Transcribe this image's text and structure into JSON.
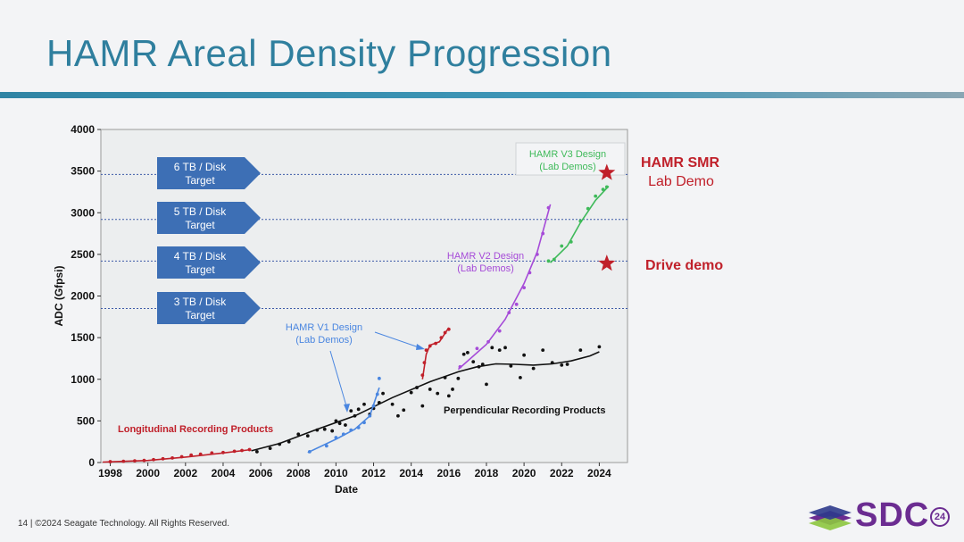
{
  "slide": {
    "title": "HAMR Areal Density Progression",
    "footer": "14 | ©2024 Seagate Technology. All Rights Reserved.",
    "logo_text": "SDC",
    "logo_year": "24"
  },
  "colors": {
    "title": "#2f7f9e",
    "target_box": "#3d6fb5",
    "longitudinal": "#c0202a",
    "perpendicular": "#111111",
    "v1": "#4a86e0",
    "v2": "#a64bd8",
    "v3": "#3fba5a",
    "star": "#c0202a"
  },
  "chart_data": {
    "type": "scatter",
    "xlabel": "Date",
    "ylabel": "ADC (Gfpsi)",
    "xlim": [
      1997.5,
      2025.5
    ],
    "ylim": [
      0,
      4000
    ],
    "xticks": [
      "1998",
      "2000",
      "2002",
      "2004",
      "2006",
      "2008",
      "2010",
      "2012",
      "2014",
      "2016",
      "2018",
      "2020",
      "2022",
      "2024"
    ],
    "yticks": [
      "0",
      "500",
      "1000",
      "1500",
      "2000",
      "2500",
      "3000",
      "3500",
      "4000"
    ],
    "targets": [
      {
        "label_line1": "6 TB / Disk",
        "label_line2": "Target",
        "y": 3460
      },
      {
        "label_line1": "5 TB / Disk",
        "label_line2": "Target",
        "y": 2920
      },
      {
        "label_line1": "4 TB / Disk",
        "label_line2": "Target",
        "y": 2420
      },
      {
        "label_line1": "3 TB / Disk",
        "label_line2": "Target",
        "y": 1850
      }
    ],
    "series": [
      {
        "name": "Longitudinal Recording Products",
        "key": "longitudinal",
        "points": [
          [
            1998,
            10
          ],
          [
            1998.7,
            15
          ],
          [
            1999.3,
            20
          ],
          [
            1999.8,
            25
          ],
          [
            2000.3,
            35
          ],
          [
            2000.8,
            45
          ],
          [
            2001.3,
            55
          ],
          [
            2001.8,
            70
          ],
          [
            2002.3,
            90
          ],
          [
            2002.8,
            100
          ],
          [
            2003.4,
            115
          ],
          [
            2004,
            120
          ],
          [
            2004.6,
            135
          ],
          [
            2005,
            145
          ],
          [
            2005.4,
            155
          ]
        ],
        "trend": [
          [
            1997.6,
            5
          ],
          [
            2000,
            25
          ],
          [
            2002,
            65
          ],
          [
            2004,
            115
          ],
          [
            2005.5,
            155
          ]
        ]
      },
      {
        "name": "Perpendicular Recording Products",
        "key": "perpendicular",
        "points": [
          [
            2005.8,
            130
          ],
          [
            2006.5,
            170
          ],
          [
            2007,
            220
          ],
          [
            2007.5,
            250
          ],
          [
            2008,
            340
          ],
          [
            2008.5,
            320
          ],
          [
            2009,
            390
          ],
          [
            2009.4,
            400
          ],
          [
            2009.8,
            380
          ],
          [
            2010,
            500
          ],
          [
            2010.2,
            470
          ],
          [
            2010.5,
            450
          ],
          [
            2010.8,
            620
          ],
          [
            2011,
            560
          ],
          [
            2011.2,
            640
          ],
          [
            2011.5,
            700
          ],
          [
            2011.8,
            580
          ],
          [
            2012,
            650
          ],
          [
            2012.3,
            720
          ],
          [
            2012.5,
            830
          ],
          [
            2013,
            700
          ],
          [
            2013.3,
            560
          ],
          [
            2013.6,
            630
          ],
          [
            2014,
            840
          ],
          [
            2014.3,
            900
          ],
          [
            2014.6,
            680
          ],
          [
            2015,
            880
          ],
          [
            2015.4,
            830
          ],
          [
            2015.8,
            1020
          ],
          [
            2016,
            800
          ],
          [
            2016.2,
            880
          ],
          [
            2016.5,
            1010
          ],
          [
            2016.8,
            1300
          ],
          [
            2017,
            1320
          ],
          [
            2017.3,
            1210
          ],
          [
            2017.6,
            1150
          ],
          [
            2017.8,
            1180
          ],
          [
            2018,
            940
          ],
          [
            2018.3,
            1380
          ],
          [
            2018.7,
            1350
          ],
          [
            2019,
            1380
          ],
          [
            2019.3,
            1160
          ],
          [
            2019.8,
            1020
          ],
          [
            2020,
            1290
          ],
          [
            2020.5,
            1130
          ],
          [
            2021,
            1350
          ],
          [
            2021.5,
            1200
          ],
          [
            2022,
            1170
          ],
          [
            2022.3,
            1180
          ],
          [
            2023,
            1350
          ],
          [
            2024,
            1390
          ]
        ],
        "trend": [
          [
            2005.5,
            140
          ],
          [
            2007,
            230
          ],
          [
            2009,
            400
          ],
          [
            2011,
            560
          ],
          [
            2013,
            780
          ],
          [
            2015,
            970
          ],
          [
            2016.5,
            1090
          ],
          [
            2017.5,
            1150
          ],
          [
            2018.5,
            1185
          ],
          [
            2019.5,
            1180
          ],
          [
            2020.5,
            1170
          ],
          [
            2021.5,
            1185
          ],
          [
            2022.5,
            1220
          ],
          [
            2023.5,
            1280
          ],
          [
            2024,
            1330
          ]
        ]
      },
      {
        "name": "HAMR V1 Design (Lab Demos)",
        "key": "v1",
        "points": [
          [
            2008.6,
            130
          ],
          [
            2009.5,
            200
          ],
          [
            2010,
            300
          ],
          [
            2010.4,
            340
          ],
          [
            2010.8,
            390
          ],
          [
            2011.2,
            420
          ],
          [
            2011.5,
            480
          ],
          [
            2011.8,
            560
          ],
          [
            2012,
            680
          ],
          [
            2012.2,
            820
          ],
          [
            2012.3,
            1010
          ]
        ],
        "trend": [
          [
            2008.5,
            120
          ],
          [
            2010,
            280
          ],
          [
            2011,
            400
          ],
          [
            2011.8,
            560
          ],
          [
            2012.3,
            900
          ]
        ]
      },
      {
        "name": "HAMR V2 Design (Lab Demos)",
        "key": "v2",
        "points": [
          [
            2016.6,
            1150
          ],
          [
            2017.5,
            1370
          ],
          [
            2018.1,
            1450
          ],
          [
            2018.7,
            1580
          ],
          [
            2019.2,
            1800
          ],
          [
            2019.6,
            1900
          ],
          [
            2020,
            2100
          ],
          [
            2020.3,
            2280
          ],
          [
            2020.7,
            2500
          ],
          [
            2021,
            2750
          ],
          [
            2021.3,
            3060
          ]
        ],
        "trend": [
          [
            2016.5,
            1120
          ],
          [
            2018,
            1420
          ],
          [
            2019,
            1720
          ],
          [
            2020,
            2150
          ],
          [
            2020.7,
            2530
          ],
          [
            2021.4,
            3100
          ]
        ]
      },
      {
        "name": "HAMR V3 Design (Lab Demos)",
        "key": "v3",
        "points": [
          [
            2021.3,
            2420
          ],
          [
            2021.6,
            2440
          ],
          [
            2022,
            2600
          ],
          [
            2022.5,
            2650
          ],
          [
            2023,
            2900
          ],
          [
            2023.4,
            3050
          ],
          [
            2023.8,
            3200
          ],
          [
            2024.2,
            3280
          ],
          [
            2024.4,
            3310
          ]
        ],
        "trend": [
          [
            2021.4,
            2400
          ],
          [
            2022.3,
            2600
          ],
          [
            2023,
            2880
          ],
          [
            2023.8,
            3150
          ],
          [
            2024.5,
            3320
          ]
        ]
      },
      {
        "name": "HAMR SMR lab demo",
        "key": "longitudinal",
        "points": [
          [
            2014.6,
            1050
          ],
          [
            2014.7,
            1200
          ],
          [
            2014.8,
            1350
          ],
          [
            2015,
            1400
          ],
          [
            2015.3,
            1430
          ],
          [
            2015.6,
            1500
          ],
          [
            2015.8,
            1560
          ],
          [
            2016,
            1600
          ]
        ],
        "trend": [
          [
            2014.6,
            1000
          ],
          [
            2014.8,
            1300
          ],
          [
            2015,
            1410
          ],
          [
            2015.5,
            1450
          ],
          [
            2016,
            1620
          ]
        ]
      }
    ],
    "stars": [
      {
        "x": 2024.4,
        "y": 3480,
        "label_line1": "HAMR SMR",
        "label_line2": "Lab Demo"
      },
      {
        "x": 2024.4,
        "y": 2390,
        "label_line1": "Drive demo",
        "label_line2": ""
      }
    ],
    "annotations": {
      "longitudinal": "Longitudinal Recording Products",
      "perpendicular": "Perpendicular Recording Products",
      "v1_line1": "HAMR V1 Design",
      "v1_line2": "(Lab Demos)",
      "v2_line1": "HAMR V2 Design",
      "v2_line2": "(Lab Demos)",
      "v3_line1": "HAMR V3 Design",
      "v3_line2": "(Lab Demos)"
    }
  }
}
